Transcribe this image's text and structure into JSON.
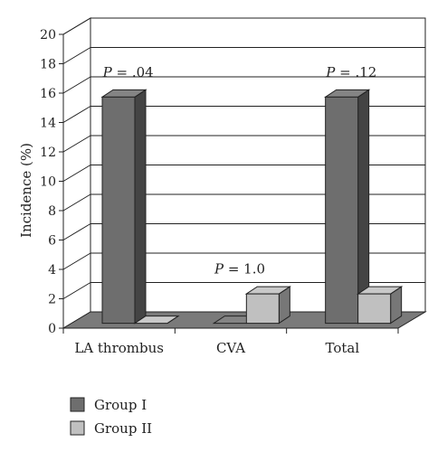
{
  "chart_data": {
    "type": "bar",
    "ylabel": "Incidence (%)",
    "ylim": [
      0,
      20
    ],
    "yticks": [
      0,
      2,
      4,
      6,
      8,
      10,
      12,
      14,
      16,
      18,
      20
    ],
    "categories": [
      "LA thrombus",
      "CVA",
      "Total"
    ],
    "series": [
      {
        "name": "Group I",
        "values": [
          15.4,
          0,
          15.4
        ],
        "color": "#6e6e6e"
      },
      {
        "name": "Group II",
        "values": [
          0,
          2.0,
          2.0
        ],
        "color": "#c0c0c0"
      }
    ],
    "annotations": [
      {
        "category": "LA thrombus",
        "italic": "P",
        "rest": " = .04"
      },
      {
        "category": "CVA",
        "italic": "P",
        "rest": " = 1.0"
      },
      {
        "category": "Total",
        "italic": "P",
        "rest": " = .12"
      }
    ],
    "grid": true,
    "style": "3d-bar",
    "legend": "bottom-left"
  }
}
